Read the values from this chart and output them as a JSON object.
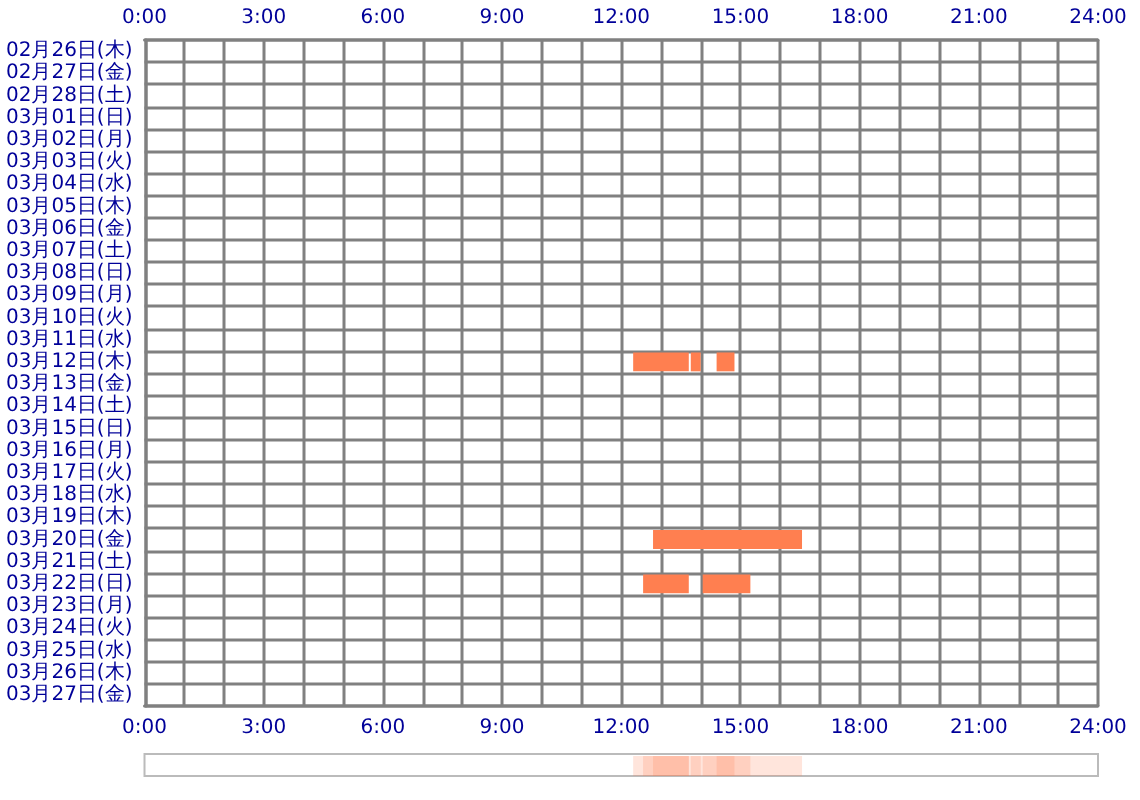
{
  "chart_data": {
    "type": "bar",
    "orientation": "horizontal",
    "grid": true,
    "categories": [
      "02月26日(木)",
      "02月27日(金)",
      "02月28日(土)",
      "03月01日(日)",
      "03月02日(月)",
      "03月03日(火)",
      "03月04日(水)",
      "03月05日(木)",
      "03月06日(金)",
      "03月07日(土)",
      "03月08日(日)",
      "03月09日(月)",
      "03月10日(火)",
      "03月11日(水)",
      "03月12日(木)",
      "03月13日(金)",
      "03月14日(土)",
      "03月15日(日)",
      "03月16日(月)",
      "03月17日(火)",
      "03月18日(水)",
      "03月19日(木)",
      "03月20日(金)",
      "03月21日(土)",
      "03月22日(日)",
      "03月23日(月)",
      "03月24日(火)",
      "03月25日(水)",
      "03月26日(木)",
      "03月27日(金)"
    ],
    "xlim": [
      0,
      24
    ],
    "xticks": [
      {
        "value": 0,
        "label": "0:00"
      },
      {
        "value": 1,
        "label": null
      },
      {
        "value": 2,
        "label": null
      },
      {
        "value": 3,
        "label": "3:00"
      },
      {
        "value": 4,
        "label": null
      },
      {
        "value": 5,
        "label": null
      },
      {
        "value": 6,
        "label": "6:00"
      },
      {
        "value": 7,
        "label": null
      },
      {
        "value": 8,
        "label": null
      },
      {
        "value": 9,
        "label": "9:00"
      },
      {
        "value": 10,
        "label": null
      },
      {
        "value": 11,
        "label": null
      },
      {
        "value": 12,
        "label": "12:00"
      },
      {
        "value": 13,
        "label": null
      },
      {
        "value": 14,
        "label": null
      },
      {
        "value": 15,
        "label": "15:00"
      },
      {
        "value": 16,
        "label": null
      },
      {
        "value": 17,
        "label": null
      },
      {
        "value": 18,
        "label": "18:00"
      },
      {
        "value": 19,
        "label": null
      },
      {
        "value": 20,
        "label": null
      },
      {
        "value": 21,
        "label": "21:00"
      },
      {
        "value": 22,
        "label": null
      },
      {
        "value": 23,
        "label": null
      },
      {
        "value": 24,
        "label": "24:00"
      }
    ],
    "x2lim": [
      0,
      24
    ],
    "x2ticks": [
      {
        "value": 0,
        "label": "0:00"
      },
      {
        "value": 1,
        "label": null
      },
      {
        "value": 2,
        "label": null
      },
      {
        "value": 3,
        "label": "3:00"
      },
      {
        "value": 4,
        "label": null
      },
      {
        "value": 5,
        "label": null
      },
      {
        "value": 6,
        "label": "6:00"
      },
      {
        "value": 7,
        "label": null
      },
      {
        "value": 8,
        "label": null
      },
      {
        "value": 9,
        "label": "9:00"
      },
      {
        "value": 10,
        "label": null
      },
      {
        "value": 11,
        "label": null
      },
      {
        "value": 12,
        "label": "12:00"
      },
      {
        "value": 13,
        "label": null
      },
      {
        "value": 14,
        "label": null
      },
      {
        "value": 15,
        "label": "15:00"
      },
      {
        "value": 16,
        "label": null
      },
      {
        "value": 17,
        "label": null
      },
      {
        "value": 18,
        "label": "18:00"
      },
      {
        "value": 19,
        "label": null
      },
      {
        "value": 20,
        "label": null
      },
      {
        "value": 21,
        "label": "21:00"
      },
      {
        "value": 22,
        "label": null
      },
      {
        "value": 23,
        "label": null
      },
      {
        "value": 24,
        "label": "24:00"
      }
    ],
    "series": [
      {
        "color": "#ff7f50",
        "base": [
          null,
          null,
          null,
          null,
          null,
          null,
          null,
          null,
          null,
          null,
          null,
          null,
          null,
          null,
          12.3,
          null,
          null,
          null,
          null,
          null,
          null,
          null,
          12.8,
          null,
          12.55,
          null,
          null,
          null,
          null,
          null
        ],
        "values": [
          null,
          null,
          null,
          null,
          null,
          null,
          null,
          null,
          null,
          null,
          null,
          null,
          null,
          null,
          1.4,
          null,
          null,
          null,
          null,
          null,
          null,
          null,
          3.75,
          null,
          1.15,
          null,
          null,
          null,
          null,
          null
        ]
      },
      {
        "color": "#ff7f50",
        "base": [
          null,
          null,
          null,
          null,
          null,
          null,
          null,
          null,
          null,
          null,
          null,
          null,
          null,
          null,
          13.75,
          null,
          null,
          null,
          null,
          null,
          null,
          null,
          null,
          null,
          14.05,
          null,
          null,
          null,
          null,
          null
        ],
        "values": [
          null,
          null,
          null,
          null,
          null,
          null,
          null,
          null,
          null,
          null,
          null,
          null,
          null,
          null,
          0.25,
          null,
          null,
          null,
          null,
          null,
          null,
          null,
          null,
          null,
          1.2,
          null,
          null,
          null,
          null,
          null
        ]
      },
      {
        "color": "#ff7f50",
        "base": [
          null,
          null,
          null,
          null,
          null,
          null,
          null,
          null,
          null,
          null,
          null,
          null,
          null,
          null,
          14.4,
          null,
          null,
          null,
          null,
          null,
          null,
          null,
          null,
          null,
          null,
          null,
          null,
          null,
          null,
          null
        ],
        "values": [
          null,
          null,
          null,
          null,
          null,
          null,
          null,
          null,
          null,
          null,
          null,
          null,
          null,
          null,
          0.45,
          null,
          null,
          null,
          null,
          null,
          null,
          null,
          null,
          null,
          null,
          null,
          null,
          null,
          null,
          null
        ]
      }
    ]
  }
}
